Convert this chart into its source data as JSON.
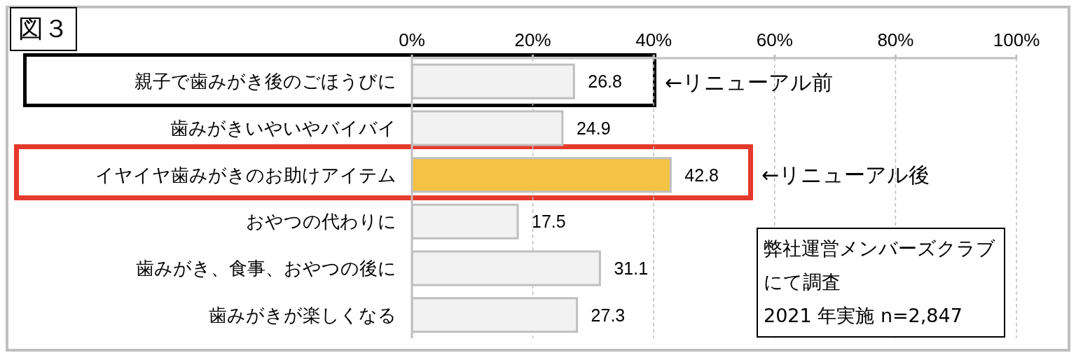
{
  "chart_data": {
    "type": "bar",
    "orientation": "horizontal",
    "title": "図３",
    "categories": [
      "親子で歯みがき後のごほうびに",
      "歯みがきいやいやバイバイ",
      "イヤイヤ歯みがきのお助けアイテム",
      "おやつの代わりに",
      "歯みがき、食事、おやつの後に",
      "歯みがきが楽しくなる"
    ],
    "values": [
      26.8,
      24.9,
      42.8,
      17.5,
      31.1,
      27.3
    ],
    "colors": [
      "#f2f2f2",
      "#f2f2f2",
      "#f4c343",
      "#f2f2f2",
      "#f2f2f2",
      "#f2f2f2"
    ],
    "xlim": [
      0,
      100
    ],
    "xticks": [
      {
        "value": 0,
        "label": "0%"
      },
      {
        "value": 20,
        "label": "20%"
      },
      {
        "value": 40,
        "label": "40%"
      },
      {
        "value": 60,
        "label": "60%"
      },
      {
        "value": 80,
        "label": "80%"
      },
      {
        "value": 100,
        "label": "100%"
      }
    ],
    "grid": "x",
    "data_labels": true,
    "annotations": [
      "←リニューアル前",
      "←リニューアル後",
      "弊社運営メンバーズクラブにて調査",
      "2021 年実施 n=2,847"
    ]
  }
}
